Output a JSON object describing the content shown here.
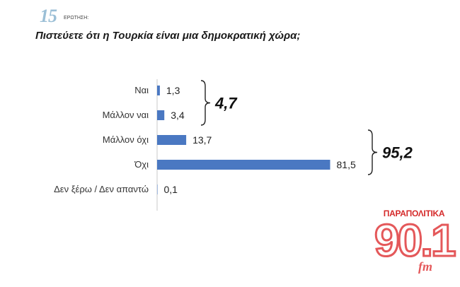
{
  "header": {
    "question_number": "15",
    "question_label": "ΕΡΩΤΗΣΗ:",
    "question_text": "Πιστεύετε ότι η Τουρκία είναι μια δημοκρατική χώρα;"
  },
  "chart_data": {
    "type": "bar",
    "orientation": "horizontal",
    "categories": [
      "Ναι",
      "Μάλλον ναι",
      "Μάλλον όχι",
      "Όχι",
      "Δεν ξέρω / Δεν απαντώ"
    ],
    "values": [
      1.3,
      3.4,
      13.7,
      81.5,
      0.1
    ],
    "value_labels": [
      "1,3",
      "3,4",
      "13,7",
      "81,5",
      "0,1"
    ],
    "bar_color": "#4a78c2",
    "groups": [
      {
        "label": "4,7",
        "categories": [
          "Ναι",
          "Μάλλον ναι"
        ]
      },
      {
        "label": "95,2",
        "categories": [
          "Μάλλον όχι",
          "Όχι"
        ]
      }
    ],
    "xlim": [
      0,
      100
    ],
    "grid": false,
    "legend": "none"
  },
  "logo": {
    "top_text": "ΠΑΡΑΠΟΛΙΤΙΚΑ",
    "number": "90.1",
    "suffix": "fm",
    "color": "#e4585a"
  }
}
